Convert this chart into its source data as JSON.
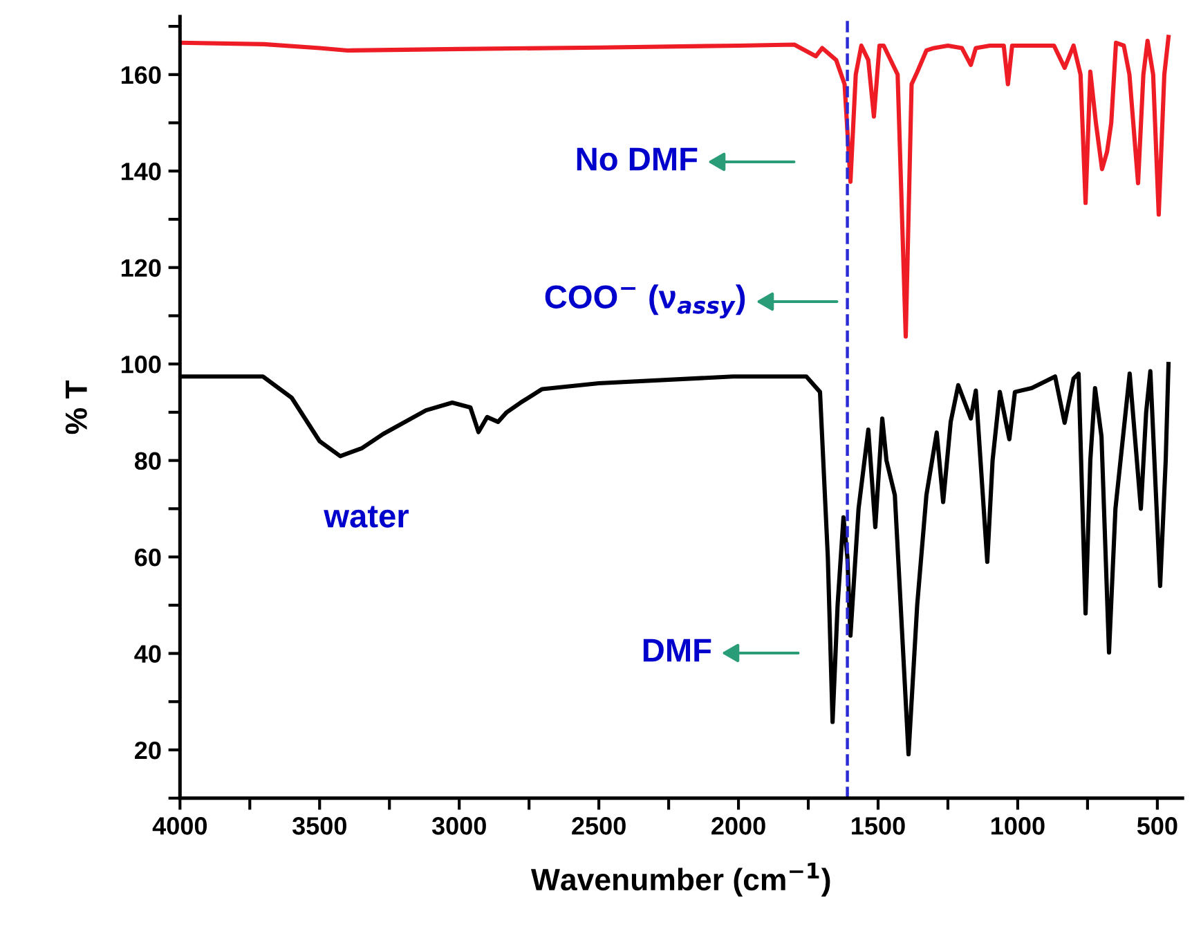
{
  "chart_data": {
    "type": "line",
    "xlabel": "Wavenumber (cm$^{−1}$)",
    "ylabel": "% T",
    "xlim": [
      4000,
      410
    ],
    "ylim": [
      10,
      172
    ],
    "xticks": [
      4000,
      {
        "value": 3750,
        "label": null
      },
      3500,
      {
        "value": 3250,
        "label": null
      },
      3000,
      {
        "value": 2750,
        "label": null
      },
      2500,
      {
        "value": 2250,
        "label": null
      },
      2000,
      {
        "value": 1750,
        "label": null
      },
      1500,
      {
        "value": 1250,
        "label": null
      },
      1000,
      {
        "value": 750,
        "label": null
      },
      500
    ],
    "yticks": [
      {
        "value": 10,
        "label": null
      },
      20,
      {
        "value": 30,
        "label": null
      },
      40,
      {
        "value": 50,
        "label": null
      },
      60,
      {
        "value": 70,
        "label": null
      },
      80,
      {
        "value": 90,
        "label": null
      },
      100,
      {
        "value": 110,
        "label": null
      },
      120,
      {
        "value": 130,
        "label": null
      },
      140,
      {
        "value": 150,
        "label": null
      },
      160,
      {
        "value": 170,
        "label": null
      }
    ],
    "grid": false,
    "legend": false,
    "marker": "none",
    "line_style": "solid",
    "series": [
      {
        "color": "#ee1c24",
        "x": [
          4000,
          3700,
          3500,
          3400,
          3000,
          2500,
          2000,
          1800,
          1723,
          1700,
          1650,
          1620,
          1599,
          1580,
          1560,
          1535,
          1515,
          1495,
          1480,
          1430,
          1401,
          1380,
          1360,
          1327,
          1300,
          1250,
          1200,
          1168,
          1150,
          1100,
          1050,
          1035,
          1020,
          950,
          870,
          832,
          800,
          775,
          757,
          740,
          720,
          698,
          680,
          665,
          648,
          620,
          600,
          569,
          550,
          535,
          515,
          495,
          475,
          460
        ],
        "values": [
          166.6,
          166.3,
          165.5,
          165,
          165.3,
          165.6,
          166,
          166.2,
          163.8,
          165.5,
          163,
          158,
          137.8,
          160,
          166,
          163,
          151.3,
          166,
          166,
          160,
          105.7,
          158,
          160.5,
          165,
          165.5,
          166,
          165.5,
          162,
          165.5,
          166,
          166,
          158,
          166,
          166,
          166,
          161.4,
          166,
          160,
          133.4,
          160.6,
          150,
          140.4,
          144,
          150,
          166.6,
          166,
          160,
          137.5,
          160,
          167,
          160,
          131,
          160,
          167.8
        ]
      },
      {
        "color": "#000000",
        "x": [
          4000,
          3703,
          3600,
          3500,
          3426,
          3350,
          3272,
          3119,
          3025,
          2960,
          2931,
          2900,
          2861,
          2830,
          2780,
          2703,
          2500,
          2020,
          1757,
          1708,
          1680,
          1663,
          1645,
          1624,
          1610,
          1599,
          1570,
          1535,
          1510,
          1485,
          1470,
          1440,
          1391,
          1360,
          1327,
          1290,
          1267,
          1240,
          1213,
          1168,
          1150,
          1109,
          1090,
          1064,
          1030,
          1010,
          950,
          866,
          832,
          800,
          782,
          757,
          740,
          723,
          700,
          673,
          650,
          599,
          559,
          540,
          525,
          490,
          470,
          460
        ],
        "values": [
          97.4,
          97.4,
          93,
          84,
          80.9,
          82.5,
          85.5,
          90.4,
          92,
          91,
          85.9,
          89,
          88,
          90,
          92,
          94.8,
          96,
          97.4,
          97.4,
          94.2,
          60,
          25.8,
          50,
          68.2,
          60,
          43.7,
          70,
          86.4,
          66.2,
          88.7,
          80,
          72.8,
          19.1,
          50,
          72.8,
          85.8,
          71.4,
          88,
          95.6,
          88.7,
          94.5,
          59,
          80,
          94.2,
          84.4,
          94.2,
          95,
          97.4,
          87.8,
          97,
          98,
          48.3,
          80,
          95,
          85,
          40.2,
          70,
          98,
          70,
          90,
          98.5,
          54,
          80,
          100
        ]
      }
    ],
    "ref_lines": [
      {
        "axis": "x",
        "value": 1610,
        "color": "#2b2bd6",
        "line_style": "dashed"
      }
    ],
    "annotations": [
      "No DMF",
      "COO$^{−}$ (ν$_{assy}$)",
      "DMF",
      "water"
    ]
  }
}
